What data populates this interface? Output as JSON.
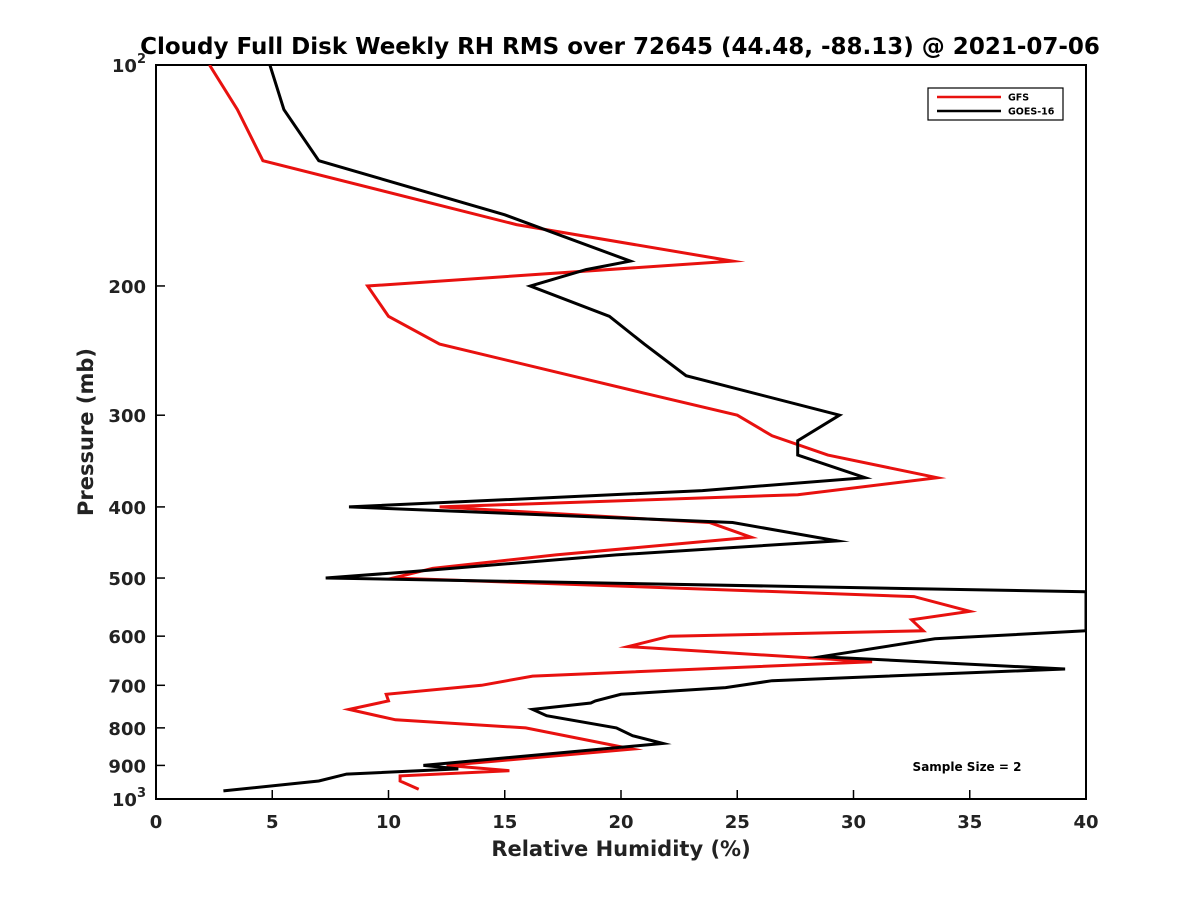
{
  "chart_data": {
    "type": "line",
    "title": "Cloudy Full Disk Weekly RH RMS over 72645 (44.48, -88.13) @ 2021-07-06",
    "xlabel": "Relative Humidity (%)",
    "ylabel": "Pressure (mb)",
    "xlim": [
      0,
      40
    ],
    "ylim": [
      100,
      1000
    ],
    "y_scale": "log",
    "y_reversed": true,
    "grid": false,
    "legend_position": "top-right",
    "x_ticks": [
      0,
      5,
      10,
      15,
      20,
      25,
      30,
      35,
      40
    ],
    "x_tick_labels": [
      "0",
      "5",
      "10",
      "15",
      "20",
      "25",
      "30",
      "35",
      "40"
    ],
    "y_ticks": [
      100,
      200,
      300,
      400,
      500,
      600,
      700,
      800,
      900,
      1000
    ],
    "y_tick_labels": [
      {
        "base": "10",
        "exp": "2"
      },
      {
        "base": "200",
        "exp": ""
      },
      {
        "base": "300",
        "exp": ""
      },
      {
        "base": "400",
        "exp": ""
      },
      {
        "base": "500",
        "exp": ""
      },
      {
        "base": "600",
        "exp": ""
      },
      {
        "base": "700",
        "exp": ""
      },
      {
        "base": "800",
        "exp": ""
      },
      {
        "base": "900",
        "exp": ""
      },
      {
        "base": "10",
        "exp": "3"
      }
    ],
    "series": [
      {
        "name": "GFS",
        "color": "#e8110f",
        "points": [
          [
            2.3,
            100
          ],
          [
            3.5,
            115
          ],
          [
            4.6,
            135
          ],
          [
            15.5,
            165
          ],
          [
            24.8,
            185
          ],
          [
            9.1,
            200
          ],
          [
            10.0,
            220
          ],
          [
            12.2,
            240
          ],
          [
            21.0,
            280
          ],
          [
            25.0,
            300
          ],
          [
            26.5,
            320
          ],
          [
            28.9,
            340
          ],
          [
            33.6,
            365
          ],
          [
            27.6,
            385
          ],
          [
            12.2,
            400
          ],
          [
            23.8,
            420
          ],
          [
            25.6,
            440
          ],
          [
            17.2,
            465
          ],
          [
            11.9,
            485
          ],
          [
            10.2,
            500
          ],
          [
            32.6,
            530
          ],
          [
            35.0,
            555
          ],
          [
            32.5,
            570
          ],
          [
            33.0,
            590
          ],
          [
            22.1,
            600
          ],
          [
            20.3,
            620
          ],
          [
            30.8,
            650
          ],
          [
            16.2,
            680
          ],
          [
            14.0,
            700
          ],
          [
            9.9,
            720
          ],
          [
            10.0,
            735
          ],
          [
            8.3,
            755
          ],
          [
            10.3,
            780
          ],
          [
            15.9,
            800
          ],
          [
            20.5,
            855
          ],
          [
            12.5,
            900
          ],
          [
            15.2,
            915
          ],
          [
            10.5,
            930
          ],
          [
            10.5,
            945
          ],
          [
            11.3,
            970
          ]
        ]
      },
      {
        "name": "GOES-16",
        "color": "#000000",
        "points": [
          [
            4.9,
            100
          ],
          [
            5.5,
            115
          ],
          [
            7.0,
            135
          ],
          [
            15.0,
            160
          ],
          [
            20.4,
            185
          ],
          [
            18.5,
            190
          ],
          [
            16.1,
            200
          ],
          [
            19.5,
            220
          ],
          [
            21.0,
            240
          ],
          [
            22.8,
            265
          ],
          [
            29.4,
            300
          ],
          [
            27.6,
            325
          ],
          [
            27.6,
            340
          ],
          [
            30.5,
            365
          ],
          [
            23.5,
            380
          ],
          [
            8.3,
            400
          ],
          [
            24.8,
            420
          ],
          [
            29.3,
            445
          ],
          [
            19.8,
            465
          ],
          [
            11.0,
            490
          ],
          [
            7.3,
            500
          ],
          [
            40.0,
            522
          ],
          [
            40.0,
            590
          ],
          [
            33.5,
            605
          ],
          [
            28.6,
            640
          ],
          [
            39.1,
            665
          ],
          [
            26.5,
            690
          ],
          [
            24.5,
            705
          ],
          [
            20.0,
            720
          ],
          [
            18.9,
            735
          ],
          [
            18.7,
            740
          ],
          [
            16.2,
            755
          ],
          [
            16.8,
            770
          ],
          [
            19.8,
            800
          ],
          [
            20.5,
            820
          ],
          [
            21.8,
            840
          ],
          [
            11.5,
            900
          ],
          [
            13.0,
            910
          ],
          [
            8.2,
            925
          ],
          [
            7.0,
            945
          ],
          [
            2.9,
            975
          ]
        ]
      }
    ],
    "annotation": "Sample Size = 2"
  }
}
